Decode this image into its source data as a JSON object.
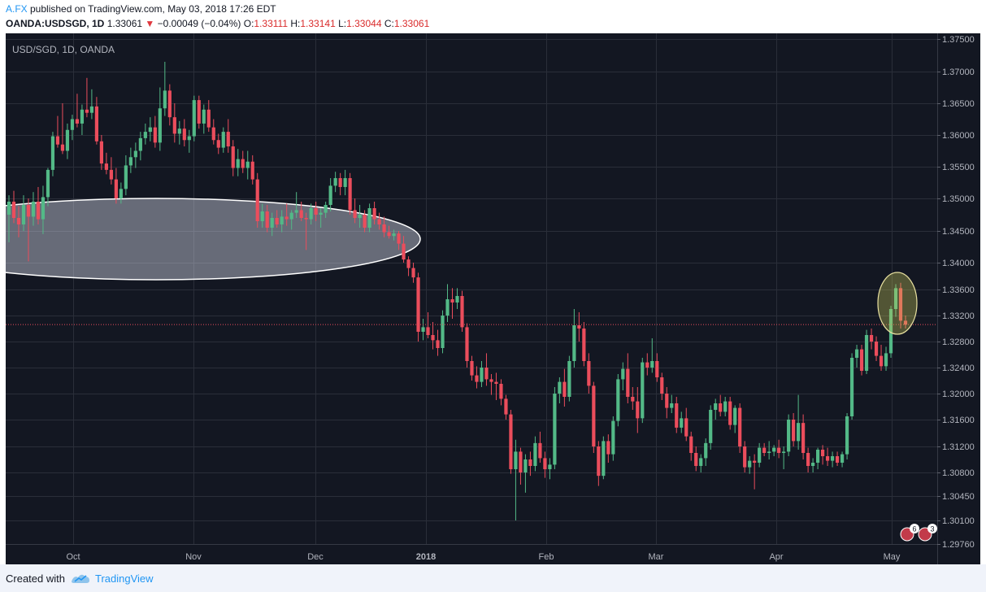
{
  "header": {
    "author": "A.FX",
    "published": " published on TradingView.com, May 03, 2018 17:26 EDT",
    "symbol": "OANDA:USDSGD, 1D",
    "last": "1.33061",
    "arrow": "▼",
    "change": "−0.00049 (−0.04%)",
    "o_label": "O:",
    "o_val": "1.33111",
    "h_label": "H:",
    "h_val": "1.33141",
    "l_label": "L:",
    "l_val": "1.33044",
    "c_label": "C:",
    "c_val": "1.33061"
  },
  "footer": {
    "created": "Created with",
    "brand": "TradingView"
  },
  "colors": {
    "up": "#53b987",
    "down": "#eb4d5c",
    "bg": "#131722",
    "grid": "#2a2e39",
    "text": "#b2b5be"
  },
  "chart_data": {
    "type": "candlestick",
    "title": "USD/SGD, 1D, OANDA",
    "y_ticks": [
      "1.37500",
      "1.37000",
      "1.36500",
      "1.36000",
      "1.35500",
      "1.35000",
      "1.34500",
      "1.34000",
      "1.33600",
      "1.33200",
      "1.32800",
      "1.32400",
      "1.32000",
      "1.31600",
      "1.31200",
      "1.30800",
      "1.30450",
      "1.30100",
      "1.29760"
    ],
    "x_ticks": [
      {
        "label": "Oct",
        "bold": false
      },
      {
        "label": "Nov",
        "bold": false
      },
      {
        "label": "Dec",
        "bold": false
      },
      {
        "label": "2018",
        "bold": true
      },
      {
        "label": "Feb",
        "bold": false
      },
      {
        "label": "Mar",
        "bold": false
      },
      {
        "label": "Apr",
        "bold": false
      },
      {
        "label": "May",
        "bold": false
      }
    ],
    "period": "2017-09-08 to 2018-05-03",
    "last_price": 1.33061,
    "badges": [
      "6",
      "3"
    ],
    "candles": [
      {
        "o": 1.3475,
        "h": 1.3505,
        "l": 1.3432,
        "c": 1.3495
      },
      {
        "o": 1.3495,
        "h": 1.3512,
        "l": 1.3462,
        "c": 1.347
      },
      {
        "o": 1.347,
        "h": 1.3488,
        "l": 1.344,
        "c": 1.346
      },
      {
        "o": 1.346,
        "h": 1.3505,
        "l": 1.345,
        "c": 1.349
      },
      {
        "o": 1.349,
        "h": 1.35,
        "l": 1.3402,
        "c": 1.3472
      },
      {
        "o": 1.3472,
        "h": 1.351,
        "l": 1.3458,
        "c": 1.3495
      },
      {
        "o": 1.3495,
        "h": 1.3518,
        "l": 1.346,
        "c": 1.3468
      },
      {
        "o": 1.3468,
        "h": 1.352,
        "l": 1.3445,
        "c": 1.3502
      },
      {
        "o": 1.3502,
        "h": 1.3548,
        "l": 1.3488,
        "c": 1.3545
      },
      {
        "o": 1.3545,
        "h": 1.3605,
        "l": 1.3535,
        "c": 1.3598
      },
      {
        "o": 1.3598,
        "h": 1.363,
        "l": 1.358,
        "c": 1.3585
      },
      {
        "o": 1.3585,
        "h": 1.365,
        "l": 1.357,
        "c": 1.3575
      },
      {
        "o": 1.3575,
        "h": 1.3618,
        "l": 1.3562,
        "c": 1.3608
      },
      {
        "o": 1.3608,
        "h": 1.3632,
        "l": 1.3592,
        "c": 1.3625
      },
      {
        "o": 1.3625,
        "h": 1.3665,
        "l": 1.3612,
        "c": 1.3618
      },
      {
        "o": 1.3618,
        "h": 1.3648,
        "l": 1.36,
        "c": 1.364
      },
      {
        "o": 1.364,
        "h": 1.369,
        "l": 1.3628,
        "c": 1.3635
      },
      {
        "o": 1.3635,
        "h": 1.3672,
        "l": 1.3625,
        "c": 1.3645
      },
      {
        "o": 1.3645,
        "h": 1.366,
        "l": 1.3585,
        "c": 1.359
      },
      {
        "o": 1.359,
        "h": 1.36,
        "l": 1.3545,
        "c": 1.3555
      },
      {
        "o": 1.3555,
        "h": 1.3572,
        "l": 1.3538,
        "c": 1.3545
      },
      {
        "o": 1.3545,
        "h": 1.3565,
        "l": 1.3522,
        "c": 1.353
      },
      {
        "o": 1.353,
        "h": 1.3548,
        "l": 1.3492,
        "c": 1.35
      },
      {
        "o": 1.35,
        "h": 1.3525,
        "l": 1.3492,
        "c": 1.3515
      },
      {
        "o": 1.3515,
        "h": 1.3568,
        "l": 1.3505,
        "c": 1.3552
      },
      {
        "o": 1.3552,
        "h": 1.358,
        "l": 1.354,
        "c": 1.3565
      },
      {
        "o": 1.3565,
        "h": 1.3588,
        "l": 1.3548,
        "c": 1.3575
      },
      {
        "o": 1.3575,
        "h": 1.3605,
        "l": 1.356,
        "c": 1.3595
      },
      {
        "o": 1.3595,
        "h": 1.3618,
        "l": 1.3585,
        "c": 1.3605
      },
      {
        "o": 1.3605,
        "h": 1.3628,
        "l": 1.359,
        "c": 1.3612
      },
      {
        "o": 1.3612,
        "h": 1.363,
        "l": 1.358,
        "c": 1.3588
      },
      {
        "o": 1.3588,
        "h": 1.3675,
        "l": 1.3575,
        "c": 1.3642
      },
      {
        "o": 1.3642,
        "h": 1.3715,
        "l": 1.363,
        "c": 1.367
      },
      {
        "o": 1.367,
        "h": 1.368,
        "l": 1.3615,
        "c": 1.3628
      },
      {
        "o": 1.3628,
        "h": 1.365,
        "l": 1.3588,
        "c": 1.3602
      },
      {
        "o": 1.3602,
        "h": 1.3622,
        "l": 1.3585,
        "c": 1.361
      },
      {
        "o": 1.361,
        "h": 1.3625,
        "l": 1.3582,
        "c": 1.3592
      },
      {
        "o": 1.3592,
        "h": 1.3608,
        "l": 1.3572,
        "c": 1.3598
      },
      {
        "o": 1.3598,
        "h": 1.3662,
        "l": 1.359,
        "c": 1.3655
      },
      {
        "o": 1.3655,
        "h": 1.3662,
        "l": 1.361,
        "c": 1.3618
      },
      {
        "o": 1.3618,
        "h": 1.3648,
        "l": 1.3602,
        "c": 1.364
      },
      {
        "o": 1.364,
        "h": 1.3655,
        "l": 1.3605,
        "c": 1.3612
      },
      {
        "o": 1.3612,
        "h": 1.3625,
        "l": 1.3585,
        "c": 1.3592
      },
      {
        "o": 1.3592,
        "h": 1.3602,
        "l": 1.357,
        "c": 1.358
      },
      {
        "o": 1.358,
        "h": 1.3612,
        "l": 1.3572,
        "c": 1.3605
      },
      {
        "o": 1.3605,
        "h": 1.3625,
        "l": 1.3572,
        "c": 1.3582
      },
      {
        "o": 1.3582,
        "h": 1.3592,
        "l": 1.3535,
        "c": 1.3548
      },
      {
        "o": 1.3548,
        "h": 1.3578,
        "l": 1.3535,
        "c": 1.3562
      },
      {
        "o": 1.3562,
        "h": 1.3575,
        "l": 1.354,
        "c": 1.3548
      },
      {
        "o": 1.3548,
        "h": 1.3575,
        "l": 1.353,
        "c": 1.3558
      },
      {
        "o": 1.3558,
        "h": 1.3568,
        "l": 1.3522,
        "c": 1.353
      },
      {
        "o": 1.353,
        "h": 1.354,
        "l": 1.3455,
        "c": 1.3465
      },
      {
        "o": 1.3465,
        "h": 1.3492,
        "l": 1.3455,
        "c": 1.348
      },
      {
        "o": 1.348,
        "h": 1.349,
        "l": 1.3448,
        "c": 1.3455
      },
      {
        "o": 1.3455,
        "h": 1.3478,
        "l": 1.3442,
        "c": 1.347
      },
      {
        "o": 1.347,
        "h": 1.3482,
        "l": 1.3455,
        "c": 1.346
      },
      {
        "o": 1.346,
        "h": 1.3482,
        "l": 1.3448,
        "c": 1.3472
      },
      {
        "o": 1.3472,
        "h": 1.3492,
        "l": 1.3458,
        "c": 1.3468
      },
      {
        "o": 1.3468,
        "h": 1.3482,
        "l": 1.3452,
        "c": 1.3478
      },
      {
        "o": 1.3478,
        "h": 1.351,
        "l": 1.347,
        "c": 1.3482
      },
      {
        "o": 1.3482,
        "h": 1.3495,
        "l": 1.3465,
        "c": 1.347
      },
      {
        "o": 1.347,
        "h": 1.3478,
        "l": 1.342,
        "c": 1.3468
      },
      {
        "o": 1.3468,
        "h": 1.3492,
        "l": 1.346,
        "c": 1.3485
      },
      {
        "o": 1.3485,
        "h": 1.3495,
        "l": 1.3465,
        "c": 1.3475
      },
      {
        "o": 1.3475,
        "h": 1.3485,
        "l": 1.3455,
        "c": 1.3478
      },
      {
        "o": 1.3478,
        "h": 1.3495,
        "l": 1.347,
        "c": 1.349
      },
      {
        "o": 1.349,
        "h": 1.3532,
        "l": 1.348,
        "c": 1.352
      },
      {
        "o": 1.352,
        "h": 1.3542,
        "l": 1.351,
        "c": 1.3532
      },
      {
        "o": 1.3532,
        "h": 1.354,
        "l": 1.3505,
        "c": 1.3518
      },
      {
        "o": 1.3518,
        "h": 1.3545,
        "l": 1.3505,
        "c": 1.3532
      },
      {
        "o": 1.3532,
        "h": 1.354,
        "l": 1.3475,
        "c": 1.3482
      },
      {
        "o": 1.3482,
        "h": 1.35,
        "l": 1.3462,
        "c": 1.347
      },
      {
        "o": 1.347,
        "h": 1.349,
        "l": 1.3455,
        "c": 1.3475
      },
      {
        "o": 1.3475,
        "h": 1.3482,
        "l": 1.3448,
        "c": 1.3455
      },
      {
        "o": 1.3455,
        "h": 1.3492,
        "l": 1.3448,
        "c": 1.3485
      },
      {
        "o": 1.3485,
        "h": 1.3495,
        "l": 1.346,
        "c": 1.3468
      },
      {
        "o": 1.3468,
        "h": 1.3478,
        "l": 1.3452,
        "c": 1.346
      },
      {
        "o": 1.346,
        "h": 1.3472,
        "l": 1.344,
        "c": 1.3448
      },
      {
        "o": 1.3448,
        "h": 1.3458,
        "l": 1.3438,
        "c": 1.3442
      },
      {
        "o": 1.3442,
        "h": 1.3452,
        "l": 1.3435,
        "c": 1.3446
      },
      {
        "o": 1.3446,
        "h": 1.345,
        "l": 1.342,
        "c": 1.343
      },
      {
        "o": 1.343,
        "h": 1.3442,
        "l": 1.34,
        "c": 1.3405
      },
      {
        "o": 1.3405,
        "h": 1.341,
        "l": 1.338,
        "c": 1.3392
      },
      {
        "o": 1.3392,
        "h": 1.34,
        "l": 1.337,
        "c": 1.3378
      },
      {
        "o": 1.3378,
        "h": 1.3385,
        "l": 1.328,
        "c": 1.3295
      },
      {
        "o": 1.3295,
        "h": 1.3315,
        "l": 1.3282,
        "c": 1.3302
      },
      {
        "o": 1.3302,
        "h": 1.3325,
        "l": 1.3285,
        "c": 1.329
      },
      {
        "o": 1.329,
        "h": 1.331,
        "l": 1.3268,
        "c": 1.3282
      },
      {
        "o": 1.3282,
        "h": 1.3298,
        "l": 1.3258,
        "c": 1.327
      },
      {
        "o": 1.327,
        "h": 1.3328,
        "l": 1.3262,
        "c": 1.332
      },
      {
        "o": 1.332,
        "h": 1.3368,
        "l": 1.331,
        "c": 1.3345
      },
      {
        "o": 1.3345,
        "h": 1.3362,
        "l": 1.3315,
        "c": 1.334
      },
      {
        "o": 1.334,
        "h": 1.3362,
        "l": 1.333,
        "c": 1.335
      },
      {
        "o": 1.335,
        "h": 1.3358,
        "l": 1.3295,
        "c": 1.3302
      },
      {
        "o": 1.3302,
        "h": 1.3308,
        "l": 1.324,
        "c": 1.325
      },
      {
        "o": 1.325,
        "h": 1.3258,
        "l": 1.322,
        "c": 1.3228
      },
      {
        "o": 1.3228,
        "h": 1.3242,
        "l": 1.3208,
        "c": 1.3218
      },
      {
        "o": 1.3218,
        "h": 1.325,
        "l": 1.321,
        "c": 1.324
      },
      {
        "o": 1.324,
        "h": 1.3262,
        "l": 1.3212,
        "c": 1.3222
      },
      {
        "o": 1.3222,
        "h": 1.323,
        "l": 1.3198,
        "c": 1.3218
      },
      {
        "o": 1.3218,
        "h": 1.3232,
        "l": 1.319,
        "c": 1.3215
      },
      {
        "o": 1.3215,
        "h": 1.3222,
        "l": 1.3182,
        "c": 1.3192
      },
      {
        "o": 1.3192,
        "h": 1.3198,
        "l": 1.316,
        "c": 1.3168
      },
      {
        "o": 1.3168,
        "h": 1.3175,
        "l": 1.3078,
        "c": 1.3085
      },
      {
        "o": 1.3085,
        "h": 1.313,
        "l": 1.301,
        "c": 1.3112
      },
      {
        "o": 1.3112,
        "h": 1.3118,
        "l": 1.3062,
        "c": 1.308
      },
      {
        "o": 1.308,
        "h": 1.3108,
        "l": 1.305,
        "c": 1.31
      },
      {
        "o": 1.31,
        "h": 1.3112,
        "l": 1.3075,
        "c": 1.309
      },
      {
        "o": 1.309,
        "h": 1.3135,
        "l": 1.3082,
        "c": 1.3125
      },
      {
        "o": 1.3125,
        "h": 1.3142,
        "l": 1.3095,
        "c": 1.3102
      },
      {
        "o": 1.3102,
        "h": 1.3112,
        "l": 1.3072,
        "c": 1.3085
      },
      {
        "o": 1.3085,
        "h": 1.3102,
        "l": 1.307,
        "c": 1.3092
      },
      {
        "o": 1.3092,
        "h": 1.321,
        "l": 1.3085,
        "c": 1.32
      },
      {
        "o": 1.32,
        "h": 1.3225,
        "l": 1.3185,
        "c": 1.3218
      },
      {
        "o": 1.3218,
        "h": 1.3238,
        "l": 1.318,
        "c": 1.3195
      },
      {
        "o": 1.3195,
        "h": 1.3258,
        "l": 1.3188,
        "c": 1.325
      },
      {
        "o": 1.325,
        "h": 1.333,
        "l": 1.324,
        "c": 1.3305
      },
      {
        "o": 1.3305,
        "h": 1.3325,
        "l": 1.328,
        "c": 1.33
      },
      {
        "o": 1.33,
        "h": 1.331,
        "l": 1.3242,
        "c": 1.325
      },
      {
        "o": 1.325,
        "h": 1.3262,
        "l": 1.32,
        "c": 1.3212
      },
      {
        "o": 1.3212,
        "h": 1.3218,
        "l": 1.311,
        "c": 1.312
      },
      {
        "o": 1.312,
        "h": 1.3128,
        "l": 1.306,
        "c": 1.3075
      },
      {
        "o": 1.3075,
        "h": 1.3135,
        "l": 1.307,
        "c": 1.3128
      },
      {
        "o": 1.3128,
        "h": 1.3138,
        "l": 1.3095,
        "c": 1.3108
      },
      {
        "o": 1.3108,
        "h": 1.3165,
        "l": 1.3098,
        "c": 1.3158
      },
      {
        "o": 1.3158,
        "h": 1.323,
        "l": 1.315,
        "c": 1.3222
      },
      {
        "o": 1.3222,
        "h": 1.3248,
        "l": 1.3205,
        "c": 1.3238
      },
      {
        "o": 1.3238,
        "h": 1.3262,
        "l": 1.3185,
        "c": 1.3195
      },
      {
        "o": 1.3195,
        "h": 1.321,
        "l": 1.3175,
        "c": 1.3188
      },
      {
        "o": 1.3188,
        "h": 1.321,
        "l": 1.314,
        "c": 1.3162
      },
      {
        "o": 1.3162,
        "h": 1.3255,
        "l": 1.3155,
        "c": 1.3248
      },
      {
        "o": 1.3248,
        "h": 1.3262,
        "l": 1.3228,
        "c": 1.324
      },
      {
        "o": 1.324,
        "h": 1.3285,
        "l": 1.3232,
        "c": 1.325
      },
      {
        "o": 1.325,
        "h": 1.3262,
        "l": 1.3218,
        "c": 1.3225
      },
      {
        "o": 1.3225,
        "h": 1.3232,
        "l": 1.319,
        "c": 1.32
      },
      {
        "o": 1.32,
        "h": 1.321,
        "l": 1.3162,
        "c": 1.3178
      },
      {
        "o": 1.3178,
        "h": 1.3198,
        "l": 1.317,
        "c": 1.3185
      },
      {
        "o": 1.3185,
        "h": 1.3195,
        "l": 1.314,
        "c": 1.3148
      },
      {
        "o": 1.3148,
        "h": 1.3172,
        "l": 1.314,
        "c": 1.3162
      },
      {
        "o": 1.3162,
        "h": 1.3178,
        "l": 1.3128,
        "c": 1.3135
      },
      {
        "o": 1.3135,
        "h": 1.3142,
        "l": 1.3098,
        "c": 1.311
      },
      {
        "o": 1.311,
        "h": 1.312,
        "l": 1.3082,
        "c": 1.309
      },
      {
        "o": 1.309,
        "h": 1.3108,
        "l": 1.308,
        "c": 1.3102
      },
      {
        "o": 1.3102,
        "h": 1.3132,
        "l": 1.309,
        "c": 1.3125
      },
      {
        "o": 1.3125,
        "h": 1.3182,
        "l": 1.3115,
        "c": 1.3175
      },
      {
        "o": 1.3175,
        "h": 1.3192,
        "l": 1.316,
        "c": 1.3185
      },
      {
        "o": 1.3185,
        "h": 1.3198,
        "l": 1.3165,
        "c": 1.3172
      },
      {
        "o": 1.3172,
        "h": 1.3195,
        "l": 1.3165,
        "c": 1.3188
      },
      {
        "o": 1.3188,
        "h": 1.3195,
        "l": 1.3145,
        "c": 1.3152
      },
      {
        "o": 1.3152,
        "h": 1.3182,
        "l": 1.314,
        "c": 1.3178
      },
      {
        "o": 1.3178,
        "h": 1.3185,
        "l": 1.311,
        "c": 1.312
      },
      {
        "o": 1.312,
        "h": 1.3128,
        "l": 1.308,
        "c": 1.3088
      },
      {
        "o": 1.3088,
        "h": 1.3105,
        "l": 1.3078,
        "c": 1.3098
      },
      {
        "o": 1.3098,
        "h": 1.3108,
        "l": 1.3055,
        "c": 1.3095
      },
      {
        "o": 1.3095,
        "h": 1.3125,
        "l": 1.3088,
        "c": 1.3118
      },
      {
        "o": 1.3118,
        "h": 1.3125,
        "l": 1.3105,
        "c": 1.311
      },
      {
        "o": 1.311,
        "h": 1.3128,
        "l": 1.31,
        "c": 1.3112
      },
      {
        "o": 1.3112,
        "h": 1.3122,
        "l": 1.3105,
        "c": 1.3118
      },
      {
        "o": 1.3118,
        "h": 1.313,
        "l": 1.3102,
        "c": 1.311
      },
      {
        "o": 1.311,
        "h": 1.312,
        "l": 1.3085,
        "c": 1.3112
      },
      {
        "o": 1.3112,
        "h": 1.3168,
        "l": 1.3105,
        "c": 1.316
      },
      {
        "o": 1.316,
        "h": 1.317,
        "l": 1.312,
        "c": 1.3128
      },
      {
        "o": 1.3128,
        "h": 1.3198,
        "l": 1.3115,
        "c": 1.3155
      },
      {
        "o": 1.3155,
        "h": 1.3168,
        "l": 1.31,
        "c": 1.311
      },
      {
        "o": 1.311,
        "h": 1.3118,
        "l": 1.308,
        "c": 1.309
      },
      {
        "o": 1.309,
        "h": 1.3102,
        "l": 1.308,
        "c": 1.3095
      },
      {
        "o": 1.3095,
        "h": 1.3118,
        "l": 1.3085,
        "c": 1.3115
      },
      {
        "o": 1.3115,
        "h": 1.3122,
        "l": 1.3092,
        "c": 1.3105
      },
      {
        "o": 1.3105,
        "h": 1.3118,
        "l": 1.309,
        "c": 1.3098
      },
      {
        "o": 1.3098,
        "h": 1.3112,
        "l": 1.3088,
        "c": 1.3105
      },
      {
        "o": 1.3105,
        "h": 1.3112,
        "l": 1.309,
        "c": 1.3095
      },
      {
        "o": 1.3095,
        "h": 1.3112,
        "l": 1.3088,
        "c": 1.3108
      },
      {
        "o": 1.3108,
        "h": 1.317,
        "l": 1.31,
        "c": 1.3165
      },
      {
        "o": 1.3165,
        "h": 1.3262,
        "l": 1.316,
        "c": 1.3255
      },
      {
        "o": 1.3255,
        "h": 1.3275,
        "l": 1.324,
        "c": 1.3268
      },
      {
        "o": 1.3268,
        "h": 1.3275,
        "l": 1.3228,
        "c": 1.3235
      },
      {
        "o": 1.3235,
        "h": 1.3298,
        "l": 1.323,
        "c": 1.329
      },
      {
        "o": 1.329,
        "h": 1.33,
        "l": 1.3268,
        "c": 1.328
      },
      {
        "o": 1.328,
        "h": 1.3288,
        "l": 1.325,
        "c": 1.3258
      },
      {
        "o": 1.3258,
        "h": 1.3275,
        "l": 1.3235,
        "c": 1.3242
      },
      {
        "o": 1.3242,
        "h": 1.3272,
        "l": 1.3235,
        "c": 1.3262
      },
      {
        "o": 1.3262,
        "h": 1.3335,
        "l": 1.3255,
        "c": 1.333
      },
      {
        "o": 1.333,
        "h": 1.3368,
        "l": 1.3318,
        "c": 1.3362
      },
      {
        "o": 1.3362,
        "h": 1.337,
        "l": 1.33,
        "c": 1.3312
      },
      {
        "o": 1.3312,
        "h": 1.332,
        "l": 1.33,
        "c": 1.3306
      }
    ]
  }
}
